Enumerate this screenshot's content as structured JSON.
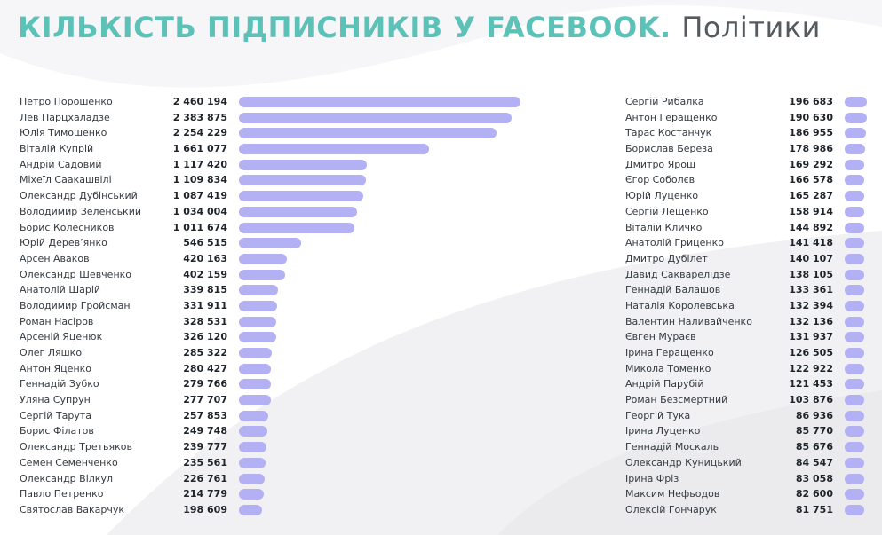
{
  "title": {
    "main": "КІЛЬКІСТЬ ПІДПИСНИКІВ У FACEBOOK.",
    "sub": "Політики"
  },
  "colors": {
    "title_main": "#5cc2b8",
    "title_sub": "#555a5f",
    "bar": "#b3b1f4"
  },
  "chart_data": {
    "type": "bar",
    "orientation": "horizontal",
    "title": "КІЛЬКІСТЬ ПІДПИСНИКІВ У FACEBOOK. Політики",
    "grid": false,
    "xlim": [
      0,
      2460194
    ],
    "columns": [
      {
        "rows": [
          {
            "name": "Петро Порошенко",
            "value": 2460194,
            "label": "2 460 194"
          },
          {
            "name": "Лев Парцхаладзе",
            "value": 2383875,
            "label": "2 383 875"
          },
          {
            "name": "Юлія Тимошенко",
            "value": 2254229,
            "label": "2 254 229"
          },
          {
            "name": "Віталій Купрій",
            "value": 1661077,
            "label": "1 661 077"
          },
          {
            "name": "Андрій Садовий",
            "value": 1117420,
            "label": "1 117 420"
          },
          {
            "name": "Міхеїл Саакашвілі",
            "value": 1109834,
            "label": "1 109 834"
          },
          {
            "name": "Олександр Дубінський",
            "value": 1087419,
            "label": "1 087 419"
          },
          {
            "name": "Володимир Зеленський",
            "value": 1034004,
            "label": "1 034 004"
          },
          {
            "name": "Борис Колесников",
            "value": 1011674,
            "label": "1 011 674"
          },
          {
            "name": "Юрій Дерев’янко",
            "value": 546515,
            "label": "546 515"
          },
          {
            "name": "Арсен Аваков",
            "value": 420163,
            "label": "420 163"
          },
          {
            "name": "Олександр Шевченко",
            "value": 402159,
            "label": "402 159"
          },
          {
            "name": "Анатолій Шарій",
            "value": 339815,
            "label": "339 815"
          },
          {
            "name": "Володимир Гройсман",
            "value": 331911,
            "label": "331 911"
          },
          {
            "name": "Роман Насіров",
            "value": 328531,
            "label": "328 531"
          },
          {
            "name": "Арсеній Яценюк",
            "value": 326120,
            "label": "326 120"
          },
          {
            "name": "Олег Ляшко",
            "value": 285322,
            "label": "285 322"
          },
          {
            "name": "Антон Яценко",
            "value": 280427,
            "label": "280 427"
          },
          {
            "name": "Геннадій Зубко",
            "value": 279766,
            "label": "279 766"
          },
          {
            "name": "Уляна Супрун",
            "value": 277707,
            "label": "277 707"
          },
          {
            "name": "Сергій Тарута",
            "value": 257853,
            "label": "257 853"
          },
          {
            "name": "Борис Філатов",
            "value": 249748,
            "label": "249 748"
          },
          {
            "name": "Олександр Третьяков",
            "value": 239777,
            "label": "239 777"
          },
          {
            "name": "Семен Семенченко",
            "value": 235561,
            "label": "235 561"
          },
          {
            "name": "Олександр Вілкул",
            "value": 226761,
            "label": "226 761"
          },
          {
            "name": "Павло Петренко",
            "value": 214779,
            "label": "214 779"
          },
          {
            "name": "Святослав Вакарчук",
            "value": 198609,
            "label": "198 609"
          }
        ]
      },
      {
        "rows": [
          {
            "name": "Сергій Рибалка",
            "value": 196683,
            "label": "196 683"
          },
          {
            "name": "Антон Геращенко",
            "value": 190630,
            "label": "190 630"
          },
          {
            "name": "Тарас Костанчук",
            "value": 186955,
            "label": "186 955"
          },
          {
            "name": "Борислав Береза",
            "value": 178986,
            "label": "178 986"
          },
          {
            "name": "Дмитро Ярош",
            "value": 169292,
            "label": "169 292"
          },
          {
            "name": "Єгор Соболєв",
            "value": 166578,
            "label": "166 578"
          },
          {
            "name": "Юрій Луценко",
            "value": 165287,
            "label": "165 287"
          },
          {
            "name": "Сергій Лещенко",
            "value": 158914,
            "label": "158 914"
          },
          {
            "name": "Віталій Кличко",
            "value": 144892,
            "label": "144 892"
          },
          {
            "name": "Анатолій Гриценко",
            "value": 141418,
            "label": "141 418"
          },
          {
            "name": "Дмитро Дубілет",
            "value": 140107,
            "label": "140 107"
          },
          {
            "name": "Давид Сакварелідзе",
            "value": 138105,
            "label": "138 105"
          },
          {
            "name": "Геннадій Балашов",
            "value": 133361,
            "label": "133 361"
          },
          {
            "name": "Наталія Королевська",
            "value": 132394,
            "label": "132 394"
          },
          {
            "name": "Валентин Наливайченко",
            "value": 132136,
            "label": "132 136"
          },
          {
            "name": "Євген Мураєв",
            "value": 131937,
            "label": "131 937"
          },
          {
            "name": "Ірина Геращенко",
            "value": 126505,
            "label": "126 505"
          },
          {
            "name": "Микола Томенко",
            "value": 122922,
            "label": "122 922"
          },
          {
            "name": "Андрій Парубій",
            "value": 121453,
            "label": "121 453"
          },
          {
            "name": "Роман Безсмертний",
            "value": 103876,
            "label": "103 876"
          },
          {
            "name": "Георгій Тука",
            "value": 86936,
            "label": "86 936"
          },
          {
            "name": "Ірина Луценко",
            "value": 85770,
            "label": "85 770"
          },
          {
            "name": "Геннадій Москаль",
            "value": 85676,
            "label": "85 676"
          },
          {
            "name": "Олександр Куницький",
            "value": 84547,
            "label": "84 547"
          },
          {
            "name": "Ірина Фріз",
            "value": 83058,
            "label": "83 058"
          },
          {
            "name": "Максим Нефьодов",
            "value": 82600,
            "label": "82 600"
          },
          {
            "name": "Олексій Гончарук",
            "value": 81751,
            "label": "81 751"
          }
        ]
      }
    ]
  }
}
